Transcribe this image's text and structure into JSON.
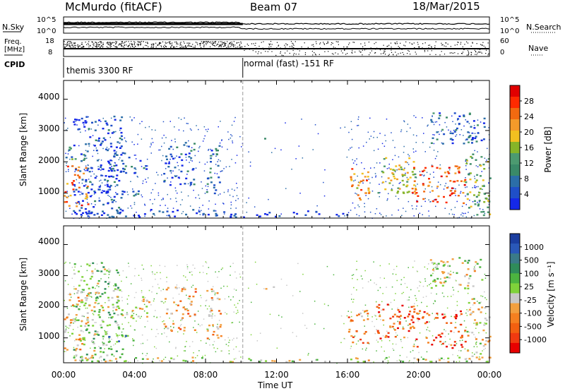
{
  "header": {
    "station": "McMurdo (fitACF)",
    "beam": "Beam 07",
    "date": "18/Mar/2015"
  },
  "noise_panel": {
    "left_label": "N.Sky",
    "right_label": "N.Search",
    "left_ticks": [
      "10^5",
      "10^0"
    ],
    "right_ticks": [
      "10^5",
      "10^0"
    ],
    "left_range": [
      0,
      5
    ],
    "right_range": [
      0,
      5
    ]
  },
  "freq_panel": {
    "left_label_1": "Freq.",
    "left_label_2": "[MHz]",
    "right_label": "Nave",
    "left_ticks": [
      "18",
      "8"
    ],
    "right_ticks": [
      "60",
      "0"
    ],
    "left_range": [
      8,
      18
    ],
    "right_range": [
      0,
      60
    ]
  },
  "cpid_panel": {
    "label": "CPID",
    "segments": [
      {
        "name": "themis 3300 RF",
        "start_hour": 0,
        "end_hour": 10.1
      },
      {
        "name": "normal (fast) -151 RF",
        "start_hour": 10.1,
        "end_hour": 24
      }
    ]
  },
  "chart_data": [
    {
      "type": "heatmap",
      "id": "power",
      "ylabel": "Slant Range [km]",
      "y_ticks": [
        "1000",
        "2000",
        "3000",
        "4000"
      ],
      "ylim": [
        200,
        4600
      ],
      "colorbar_label": "Power [dB]",
      "colorbar_ticks": [
        "28",
        "24",
        "20",
        "16",
        "12",
        "8",
        "4"
      ],
      "colorbar_colors": [
        "#e10000",
        "#ff2a00",
        "#f26a10",
        "#f49a2a",
        "#f2c020",
        "#86b428",
        "#4c9a70",
        "#3a8a68",
        "#2b6ea8",
        "#1f4fc8",
        "#1428e8"
      ],
      "patches": [
        {
          "t0": 0.0,
          "t1": 1.4,
          "r0": 600,
          "r1": 1900,
          "level": 0.75
        },
        {
          "t0": 0.1,
          "t1": 1.3,
          "r0": 1900,
          "r1": 2500,
          "level": 0.3
        },
        {
          "t0": 0.5,
          "t1": 3.3,
          "r0": 300,
          "r1": 3500,
          "level": 0.12
        },
        {
          "t0": 2.1,
          "t1": 4.2,
          "r0": 900,
          "r1": 1150,
          "level": 0.15
        },
        {
          "t0": 2.6,
          "t1": 4.8,
          "r0": 1650,
          "r1": 2350,
          "level": 0.2
        },
        {
          "t0": 5.6,
          "t1": 7.4,
          "r0": 1250,
          "r1": 2650,
          "level": 0.18
        },
        {
          "t0": 8.0,
          "t1": 8.9,
          "r0": 1000,
          "r1": 2600,
          "level": 0.25
        },
        {
          "t0": 0.0,
          "t1": 10.0,
          "r0": 250,
          "r1": 500,
          "level": 0.1
        },
        {
          "t0": 10.0,
          "t1": 16.0,
          "r0": 250,
          "r1": 450,
          "level": 0.08
        },
        {
          "t0": 11.3,
          "t1": 11.8,
          "r0": 2550,
          "r1": 2800,
          "level": 0.3
        },
        {
          "t0": 16.0,
          "t1": 17.2,
          "r0": 800,
          "r1": 1900,
          "level": 0.7
        },
        {
          "t0": 17.6,
          "t1": 19.8,
          "r0": 1000,
          "r1": 2200,
          "level": 0.55
        },
        {
          "t0": 19.6,
          "t1": 22.6,
          "r0": 700,
          "r1": 1900,
          "level": 0.8
        },
        {
          "t0": 22.6,
          "t1": 24.0,
          "r0": 300,
          "r1": 2300,
          "level": 0.45
        },
        {
          "t0": 20.6,
          "t1": 23.7,
          "r0": 2600,
          "r1": 3600,
          "level": 0.2
        }
      ]
    },
    {
      "type": "heatmap",
      "id": "velocity",
      "ylabel": "Slant Range [km]",
      "y_ticks": [
        "1000",
        "2000",
        "3000",
        "4000"
      ],
      "ylim": [
        200,
        4600
      ],
      "colorbar_label": "Velocity [m s⁻¹]",
      "colorbar_ticks": [
        "1000",
        "500",
        "100",
        "25",
        "-25",
        "-100",
        "-500",
        "-1000"
      ],
      "colorbar_colors": [
        "#1b3ea0",
        "#2a58b8",
        "#3a7a88",
        "#2f8c5a",
        "#4cb440",
        "#7fd23a",
        "#c8c8c8",
        "#f2a040",
        "#f58020",
        "#f26010",
        "#f03a10",
        "#e80000"
      ],
      "patches": [
        {
          "t0": 0.0,
          "t1": 1.4,
          "r0": 600,
          "r1": 2500,
          "level": 0.62
        },
        {
          "t0": 0.5,
          "t1": 3.3,
          "r0": 300,
          "r1": 3500,
          "level": 0.45
        },
        {
          "t0": 2.1,
          "t1": 4.2,
          "r0": 900,
          "r1": 1150,
          "level": 0.25
        },
        {
          "t0": 2.6,
          "t1": 4.8,
          "r0": 1650,
          "r1": 2350,
          "level": 0.6
        },
        {
          "t0": 5.6,
          "t1": 7.4,
          "r0": 1250,
          "r1": 2650,
          "level": 0.68
        },
        {
          "t0": 8.0,
          "t1": 8.9,
          "r0": 1000,
          "r1": 2600,
          "level": 0.66
        },
        {
          "t0": 11.3,
          "t1": 11.8,
          "r0": 2550,
          "r1": 2800,
          "level": 0.55
        },
        {
          "t0": 16.0,
          "t1": 17.2,
          "r0": 800,
          "r1": 1900,
          "level": 0.7
        },
        {
          "t0": 17.6,
          "t1": 19.8,
          "r0": 1000,
          "r1": 2200,
          "level": 0.8
        },
        {
          "t0": 19.6,
          "t1": 22.6,
          "r0": 700,
          "r1": 1900,
          "level": 0.82
        },
        {
          "t0": 22.6,
          "t1": 24.0,
          "r0": 300,
          "r1": 2300,
          "level": 0.55
        },
        {
          "t0": 20.6,
          "t1": 23.7,
          "r0": 2600,
          "r1": 3600,
          "level": 0.5
        },
        {
          "t0": 0.0,
          "t1": 24.0,
          "r0": 250,
          "r1": 400,
          "level": 0.52
        }
      ]
    }
  ],
  "x_axis": {
    "label": "Time UT",
    "range_hours": [
      0,
      24
    ],
    "ticks": [
      {
        "hour": 0,
        "label": "00:00"
      },
      {
        "hour": 4,
        "label": "04:00"
      },
      {
        "hour": 8,
        "label": "08:00"
      },
      {
        "hour": 12,
        "label": "12:00"
      },
      {
        "hour": 16,
        "label": "16:00"
      },
      {
        "hour": 20,
        "label": "20:00"
      },
      {
        "hour": 24,
        "label": "00:00"
      }
    ],
    "mode_change_hour": 10.1
  }
}
